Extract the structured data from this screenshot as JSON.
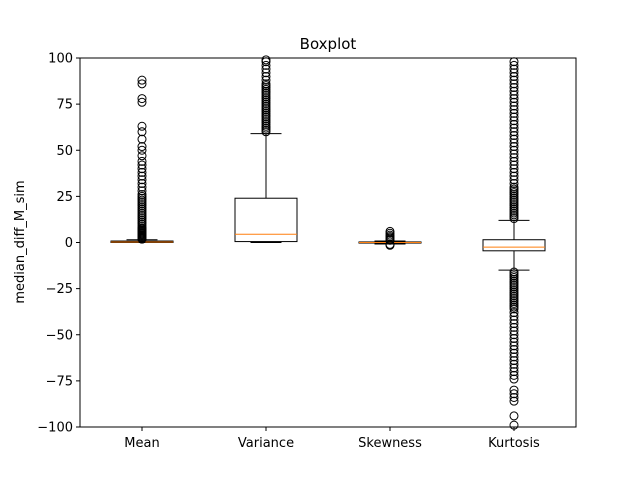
{
  "chart_data": {
    "type": "boxplot",
    "title": "Boxplot",
    "xlabel": "",
    "ylabel": "median_diff_M_sim",
    "ylim": [
      -100,
      100
    ],
    "yticks": [
      100,
      75,
      50,
      25,
      0,
      -25,
      -50,
      -75,
      -100
    ],
    "yticks_labels": [
      "100",
      "75",
      "50",
      "25",
      "0",
      "−25",
      "−50",
      "−75",
      "−100"
    ],
    "categories": [
      "Mean",
      "Variance",
      "Skewness",
      "Kurtosis"
    ],
    "boxes": [
      {
        "name": "Mean",
        "whisker_low": 0.0,
        "q1": 0.0,
        "median": 0.3,
        "q3": 0.8,
        "whisker_high": 1.5,
        "outliers": [
          1.8,
          2.2,
          2.6,
          3,
          3.5,
          4,
          4.5,
          5,
          5.5,
          6,
          6.5,
          7,
          7.5,
          8,
          9,
          10,
          11,
          12,
          13,
          14,
          15,
          16,
          17,
          18,
          19,
          20,
          21,
          22,
          23,
          24,
          25,
          26,
          28,
          30,
          32,
          34,
          36,
          38,
          40,
          42,
          44,
          47,
          50,
          52,
          56,
          60,
          63,
          76,
          78,
          86,
          88
        ]
      },
      {
        "name": "Variance",
        "whisker_low": 0.0,
        "q1": 0.5,
        "median": 4.5,
        "q3": 24,
        "whisker_high": 59,
        "outliers": [
          60,
          61,
          62,
          63,
          64,
          65,
          66,
          67,
          68,
          69,
          70,
          71,
          72,
          73,
          74,
          75,
          76,
          77,
          78,
          79,
          80,
          81,
          82,
          83,
          84,
          85,
          86,
          88,
          90,
          92,
          94,
          96,
          98,
          99
        ]
      },
      {
        "name": "Skewness",
        "whisker_low": -0.8,
        "q1": -0.3,
        "median": 0.0,
        "q3": 0.3,
        "whisker_high": 0.8,
        "outliers": [
          1.2,
          1.8,
          2.5,
          3.2,
          4,
          5,
          6,
          -1.0,
          -1.5
        ]
      },
      {
        "name": "Kurtosis",
        "whisker_low": -15,
        "q1": -4.5,
        "median": -2.5,
        "q3": 1.5,
        "whisker_high": 12,
        "outliers": [
          13,
          14,
          15,
          16,
          17,
          18,
          19,
          20,
          21,
          22,
          23,
          24,
          25,
          26,
          27,
          28,
          29,
          30,
          32,
          34,
          36,
          38,
          40,
          42,
          44,
          46,
          48,
          50,
          52,
          54,
          56,
          58,
          60,
          62,
          64,
          66,
          68,
          70,
          72,
          74,
          76,
          78,
          80,
          82,
          84,
          86,
          88,
          90,
          92,
          94,
          96,
          98,
          -16,
          -17,
          -18,
          -19,
          -20,
          -21,
          -22,
          -23,
          -24,
          -25,
          -26,
          -27,
          -28,
          -29,
          -30,
          -31,
          -32,
          -33,
          -34,
          -35,
          -36,
          -38,
          -40,
          -42,
          -44,
          -46,
          -48,
          -50,
          -52,
          -54,
          -56,
          -58,
          -60,
          -62,
          -64,
          -66,
          -68,
          -70,
          -72,
          -74,
          -80,
          -82,
          -84,
          -86,
          -94,
          -99
        ]
      }
    ],
    "colors": {
      "box": "#000000",
      "median": "#ff7f0e",
      "outlier": "#000000",
      "background": "#ffffff"
    },
    "grid": false,
    "legend": "none"
  }
}
